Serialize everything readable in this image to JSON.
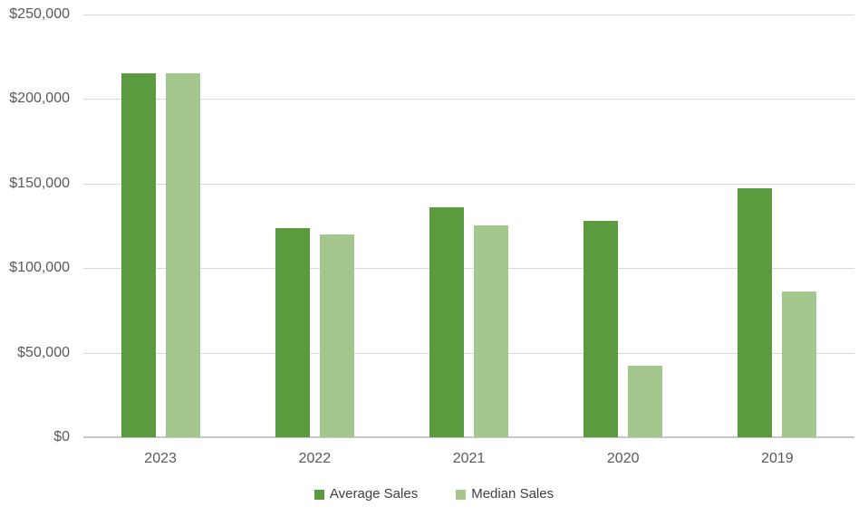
{
  "chart_data": {
    "type": "bar",
    "title": "",
    "xlabel": "",
    "ylabel": "",
    "categories": [
      "2023",
      "2022",
      "2021",
      "2020",
      "2019"
    ],
    "series": [
      {
        "name": "Average Sales",
        "color": "#5b9b40",
        "values": [
          215000,
          123500,
          136000,
          128000,
          147000
        ]
      },
      {
        "name": "Median Sales",
        "color": "#a3c78d",
        "values": [
          215000,
          120000,
          125500,
          42500,
          86000
        ]
      }
    ],
    "ylim": [
      0,
      250000
    ],
    "ytick_interval": 50000,
    "yticks": [
      {
        "value": 0,
        "label": "$0"
      },
      {
        "value": 50000,
        "label": "$50,000"
      },
      {
        "value": 100000,
        "label": "$100,000"
      },
      {
        "value": 150000,
        "label": "$150,000"
      },
      {
        "value": 200000,
        "label": "$200,000"
      },
      {
        "value": 250000,
        "label": "$250,000"
      }
    ],
    "grid": "horizontal",
    "legend_position": "bottom"
  },
  "colors": {
    "background": "#ffffff",
    "gridline": "#d9d9d9",
    "axis_line": "#c8c8c8",
    "tick_label": "#595959",
    "legend_text": "#3f3f3f",
    "series_average_sales": "#5b9b40",
    "series_median_sales": "#a3c78d"
  }
}
